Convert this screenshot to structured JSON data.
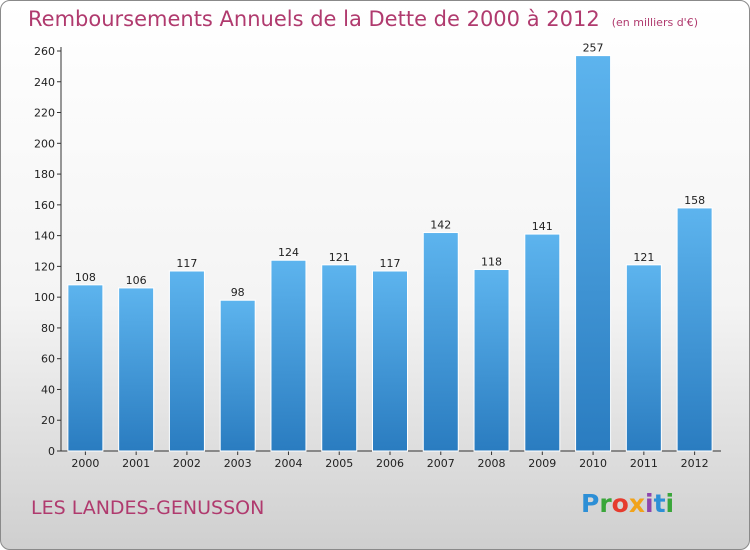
{
  "title": "Remboursements Annuels de la Dette de 2000 à 2012",
  "unit": "(en milliers d'€)",
  "commune": "LES LANDES-GENUSSON",
  "logo": {
    "text": "Proxiti",
    "colors": [
      "#2d8fd6",
      "#3aa63a",
      "#e63b2e",
      "#f1a31a",
      "#8e44ad",
      "#2d8fd6",
      "#3aa63a"
    ]
  },
  "colors": {
    "bar_top": "#5db4ee",
    "bar_bottom": "#2a7cc0",
    "title": "#b03a6e"
  },
  "chart_data": {
    "type": "bar",
    "title": "Remboursements Annuels de la Dette de 2000 à 2012",
    "subtitle": "(en milliers d'€)",
    "categories": [
      "2000",
      "2001",
      "2002",
      "2003",
      "2004",
      "2005",
      "2006",
      "2007",
      "2008",
      "2009",
      "2010",
      "2011",
      "2012"
    ],
    "values": [
      108,
      106,
      117,
      98,
      124,
      121,
      117,
      142,
      118,
      141,
      257,
      121,
      158
    ],
    "ylim": [
      0,
      260
    ],
    "yticks": [
      0,
      20,
      40,
      60,
      80,
      100,
      120,
      140,
      160,
      180,
      200,
      220,
      240,
      260
    ],
    "grid": false,
    "legend": "none"
  }
}
